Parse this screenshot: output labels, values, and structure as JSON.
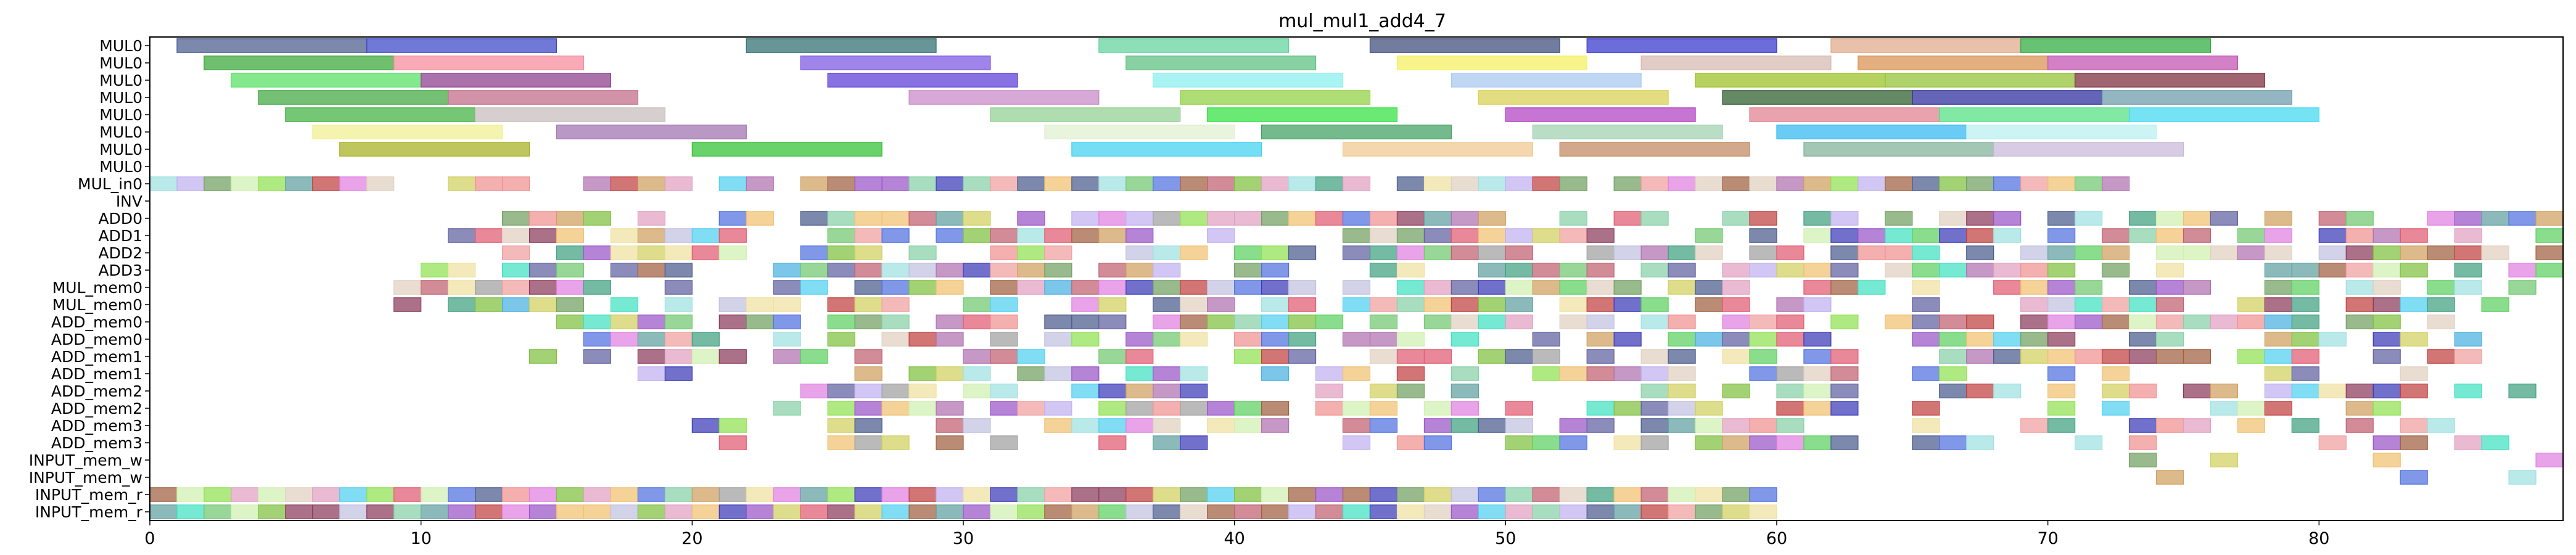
{
  "chart_data": {
    "type": "gantt",
    "title": "mul_mul1_add4_7",
    "xlabel": "",
    "ylabel": "",
    "xlim": [
      0,
      89
    ],
    "x_ticks": [
      0,
      10,
      20,
      30,
      40,
      50,
      60,
      70,
      80
    ],
    "grid": false,
    "rows": [
      "MUL0",
      "MUL0",
      "MUL0",
      "MUL0",
      "MUL0",
      "MUL0",
      "MUL0",
      "MUL0",
      "MUL_in0",
      "INV",
      "ADD0",
      "ADD1",
      "ADD2",
      "ADD3",
      "MUL_mem0",
      "MUL_mem0",
      "ADD_mem0",
      "ADD_mem0",
      "ADD_mem1",
      "ADD_mem1",
      "ADD_mem2",
      "ADD_mem2",
      "ADD_mem3",
      "ADD_mem3",
      "INPUT_mem_w",
      "INPUT_mem_w",
      "INPUT_mem_r",
      "INPUT_mem_r"
    ],
    "long_ops": [
      {
        "row": 0,
        "start": 1,
        "end": 8,
        "color": "#4a5a8c"
      },
      {
        "row": 0,
        "start": 8,
        "end": 15,
        "color": "#3a45c8"
      },
      {
        "row": 0,
        "start": 22,
        "end": 29,
        "color": "#2e6e6e"
      },
      {
        "row": 0,
        "start": 35,
        "end": 42,
        "color": "#5fd39a"
      },
      {
        "row": 0,
        "start": 45,
        "end": 52,
        "color": "#3a4a7a"
      },
      {
        "row": 0,
        "start": 53,
        "end": 60,
        "color": "#3333cc"
      },
      {
        "row": 0,
        "start": 62,
        "end": 69,
        "color": "#e0a888"
      },
      {
        "row": 0,
        "start": 69,
        "end": 76,
        "color": "#2eaa3e"
      },
      {
        "row": 1,
        "start": 2,
        "end": 9,
        "color": "#37a637"
      },
      {
        "row": 1,
        "start": 9,
        "end": 16,
        "color": "#f58a9a"
      },
      {
        "row": 1,
        "start": 24,
        "end": 31,
        "color": "#7a55e0"
      },
      {
        "row": 1,
        "start": 36,
        "end": 43,
        "color": "#5cbf80"
      },
      {
        "row": 1,
        "start": 46,
        "end": 53,
        "color": "#f5f060"
      },
      {
        "row": 1,
        "start": 55,
        "end": 62,
        "color": "#d5b8b0"
      },
      {
        "row": 1,
        "start": 63,
        "end": 70,
        "color": "#d8904f"
      },
      {
        "row": 1,
        "start": 70,
        "end": 77,
        "color": "#c050b0"
      },
      {
        "row": 2,
        "start": 3,
        "end": 10,
        "color": "#55e060"
      },
      {
        "row": 2,
        "start": 10,
        "end": 17,
        "color": "#8a3a8a"
      },
      {
        "row": 2,
        "start": 25,
        "end": 32,
        "color": "#5a3ad8"
      },
      {
        "row": 2,
        "start": 37,
        "end": 44,
        "color": "#88f0ee"
      },
      {
        "row": 2,
        "start": 48,
        "end": 55,
        "color": "#a8c8f0"
      },
      {
        "row": 2,
        "start": 57,
        "end": 64,
        "color": "#9ac020"
      },
      {
        "row": 2,
        "start": 64,
        "end": 71,
        "color": "#90c030"
      },
      {
        "row": 2,
        "start": 71,
        "end": 78,
        "color": "#7a2a3a"
      },
      {
        "row": 3,
        "start": 4,
        "end": 11,
        "color": "#40a840"
      },
      {
        "row": 3,
        "start": 11,
        "end": 18,
        "color": "#c06a88"
      },
      {
        "row": 3,
        "start": 28,
        "end": 35,
        "color": "#c888c8"
      },
      {
        "row": 3,
        "start": 38,
        "end": 45,
        "color": "#90d040"
      },
      {
        "row": 3,
        "start": 49,
        "end": 56,
        "color": "#d8d050"
      },
      {
        "row": 3,
        "start": 58,
        "end": 65,
        "color": "#2a5a2a"
      },
      {
        "row": 3,
        "start": 65,
        "end": 72,
        "color": "#2a2a9a"
      },
      {
        "row": 3,
        "start": 72,
        "end": 79,
        "color": "#6a9aaa"
      },
      {
        "row": 4,
        "start": 5,
        "end": 12,
        "color": "#40b040"
      },
      {
        "row": 4,
        "start": 12,
        "end": 19,
        "color": "#c8bcbc"
      },
      {
        "row": 4,
        "start": 31,
        "end": 38,
        "color": "#90d090"
      },
      {
        "row": 4,
        "start": 39,
        "end": 46,
        "color": "#30e040"
      },
      {
        "row": 4,
        "start": 50,
        "end": 57,
        "color": "#b040c0"
      },
      {
        "row": 4,
        "start": 59,
        "end": 66,
        "color": "#e08090"
      },
      {
        "row": 4,
        "start": 66,
        "end": 73,
        "color": "#50e080"
      },
      {
        "row": 4,
        "start": 73,
        "end": 80,
        "color": "#40d8f0"
      },
      {
        "row": 5,
        "start": 6,
        "end": 13,
        "color": "#f0f090"
      },
      {
        "row": 5,
        "start": 15,
        "end": 22,
        "color": "#a070b0"
      },
      {
        "row": 5,
        "start": 33,
        "end": 40,
        "color": "#e0f0d0"
      },
      {
        "row": 5,
        "start": 41,
        "end": 48,
        "color": "#40a060"
      },
      {
        "row": 5,
        "start": 51,
        "end": 58,
        "color": "#a0d0b0"
      },
      {
        "row": 5,
        "start": 60,
        "end": 67,
        "color": "#30b8f0"
      },
      {
        "row": 5,
        "start": 67,
        "end": 74,
        "color": "#b8f0f0"
      },
      {
        "row": 6,
        "start": 7,
        "end": 14,
        "color": "#a8b020"
      },
      {
        "row": 6,
        "start": 20,
        "end": 27,
        "color": "#30c030"
      },
      {
        "row": 6,
        "start": 34,
        "end": 41,
        "color": "#40d0f0"
      },
      {
        "row": 6,
        "start": 44,
        "end": 51,
        "color": "#f0c890"
      },
      {
        "row": 6,
        "start": 52,
        "end": 59,
        "color": "#c08860"
      },
      {
        "row": 6,
        "start": 61,
        "end": 68,
        "color": "#80b098"
      },
      {
        "row": 6,
        "start": 68,
        "end": 75,
        "color": "#c8b8d8"
      }
    ],
    "dense_rows": [
      {
        "row": 8,
        "start": 0,
        "end": 73,
        "fill": 0.82
      },
      {
        "row": 10,
        "start": 13,
        "end": 89,
        "fill": 0.78
      },
      {
        "row": 11,
        "start": 11,
        "end": 89,
        "fill": 0.72
      },
      {
        "row": 12,
        "start": 13,
        "end": 89,
        "fill": 0.72
      },
      {
        "row": 13,
        "start": 10,
        "end": 89,
        "fill": 0.75
      },
      {
        "row": 14,
        "start": 9,
        "end": 88,
        "fill": 0.7
      },
      {
        "row": 15,
        "start": 9,
        "end": 88,
        "fill": 0.7
      },
      {
        "row": 16,
        "start": 14,
        "end": 86,
        "fill": 0.68
      },
      {
        "row": 17,
        "start": 16,
        "end": 86,
        "fill": 0.68
      },
      {
        "row": 18,
        "start": 14,
        "end": 86,
        "fill": 0.62
      },
      {
        "row": 19,
        "start": 16,
        "end": 86,
        "fill": 0.62
      },
      {
        "row": 20,
        "start": 24,
        "end": 88,
        "fill": 0.62
      },
      {
        "row": 21,
        "start": 23,
        "end": 86,
        "fill": 0.6
      },
      {
        "row": 22,
        "start": 19,
        "end": 86,
        "fill": 0.55
      },
      {
        "row": 23,
        "start": 21,
        "end": 88,
        "fill": 0.55
      },
      {
        "row": 24,
        "start": 71,
        "end": 89,
        "fill": 0.3
      },
      {
        "row": 25,
        "start": 74,
        "end": 89,
        "fill": 0.35
      },
      {
        "row": 26,
        "start": 0,
        "end": 60,
        "fill": 1.0
      },
      {
        "row": 27,
        "start": 0,
        "end": 60,
        "fill": 1.0
      }
    ],
    "palette": [
      "#4a5a8c",
      "#e05a70",
      "#5cd060",
      "#9a55c8",
      "#f0c070",
      "#4ab0e0",
      "#c04040",
      "#70c870",
      "#e080e0",
      "#3a3ab8",
      "#a0e0e0",
      "#d0a060",
      "#60a0a0",
      "#f09090",
      "#88d0a8",
      "#b070b0",
      "#d0d060",
      "#5070e0",
      "#e0a0c0",
      "#80c040",
      "#40e0c0",
      "#c0c0e0",
      "#8a3a5a",
      "#f0e0a0",
      "#70a060",
      "#c06070",
      "#a0a0a0",
      "#50d0f0",
      "#e0d0c0",
      "#90e050",
      "#a06040",
      "#d0f0b0",
      "#6060a0",
      "#f0a0a0",
      "#40a080",
      "#c0b0f0"
    ]
  }
}
